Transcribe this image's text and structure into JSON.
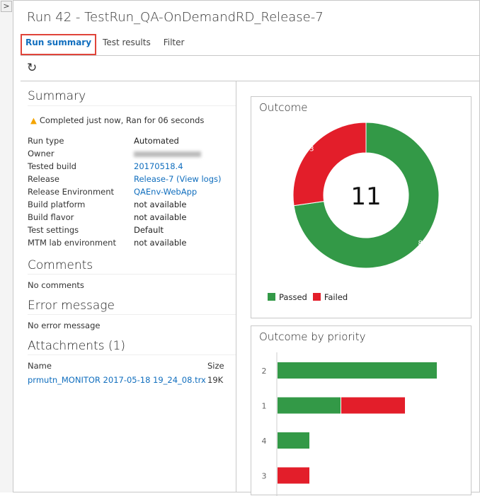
{
  "title": "Run 42 - TestRun_QA-OnDemandRD_Release-7",
  "tabs": [
    {
      "label": "Run summary",
      "active": true
    },
    {
      "label": "Test results"
    },
    {
      "label": "Filter"
    }
  ],
  "icons": {
    "collapse": "chevron-right-icon",
    "refresh": "refresh-icon",
    "warning": "warning-icon"
  },
  "summary": {
    "heading": "Summary",
    "status": "Completed just now, Ran for 06 seconds",
    "fields": [
      {
        "key": "Run type",
        "value": "Automated"
      },
      {
        "key": "Owner",
        "value": null,
        "blurred": true
      },
      {
        "key": "Tested build",
        "value": "20170518.4",
        "link": true
      },
      {
        "key": "Release",
        "value": "Release-7 (View logs)",
        "link": true
      },
      {
        "key": "Release Environment",
        "value": "QAEnv-WebApp",
        "link": true
      },
      {
        "key": "Build platform",
        "value": "not available"
      },
      {
        "key": "Build flavor",
        "value": "not available"
      },
      {
        "key": "Test settings",
        "value": "Default"
      },
      {
        "key": "MTM lab environment",
        "value": "not available"
      }
    ]
  },
  "comments": {
    "heading": "Comments",
    "text": "No comments"
  },
  "error": {
    "heading": "Error message",
    "text": "No error message"
  },
  "attachments": {
    "heading": "Attachments (1)",
    "col_name": "Name",
    "col_size": "Size",
    "rows": [
      {
        "name": "prmutn_MONITOR 2017-05-18 19_24_08.trx",
        "size": "19K"
      }
    ]
  },
  "colors": {
    "passed": "#339947",
    "failed": "#e31e2a",
    "link": "#106ebe"
  },
  "chart_data": [
    {
      "type": "pie",
      "title": "Outcome",
      "total": "11",
      "slices": [
        {
          "name": "Passed",
          "value": 8
        },
        {
          "name": "Failed",
          "value": 3
        }
      ],
      "legend": "bottom-left"
    },
    {
      "type": "bar",
      "orientation": "horizontal",
      "stacked": true,
      "title": "Outcome by priority",
      "categories": [
        "2",
        "1",
        "4",
        "3"
      ],
      "series": [
        {
          "name": "Passed",
          "values": [
            5,
            2,
            1,
            0
          ]
        },
        {
          "name": "Failed",
          "values": [
            0,
            2,
            0,
            1
          ]
        }
      ]
    }
  ]
}
